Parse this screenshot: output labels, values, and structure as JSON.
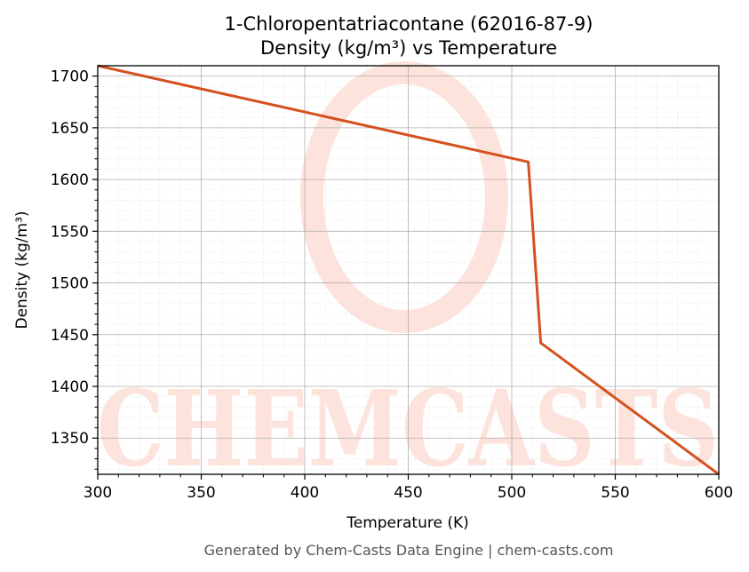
{
  "chart_data": {
    "type": "line",
    "title": "1-Chloropentatriacontane (62016-87-9)",
    "subtitle": "Density (kg/m³) vs Temperature",
    "xlabel": "Temperature (K)",
    "ylabel": "Density (kg/m³)",
    "xlim": [
      300,
      600
    ],
    "ylim": [
      1315,
      1710
    ],
    "x_ticks": [
      300,
      350,
      400,
      450,
      500,
      550,
      600
    ],
    "y_ticks": [
      1350,
      1400,
      1450,
      1500,
      1550,
      1600,
      1650,
      1700
    ],
    "grid": true,
    "series": [
      {
        "color": "#d4521f",
        "x": [
          300,
          508,
          514,
          600
        ],
        "y": [
          1710,
          1617,
          1442,
          1315
        ]
      }
    ]
  },
  "watermark": {
    "text": "CHEMCASTS",
    "color": "#fde3dc"
  },
  "footer": "Generated by Chem-Casts Data Engine | chem-casts.com"
}
